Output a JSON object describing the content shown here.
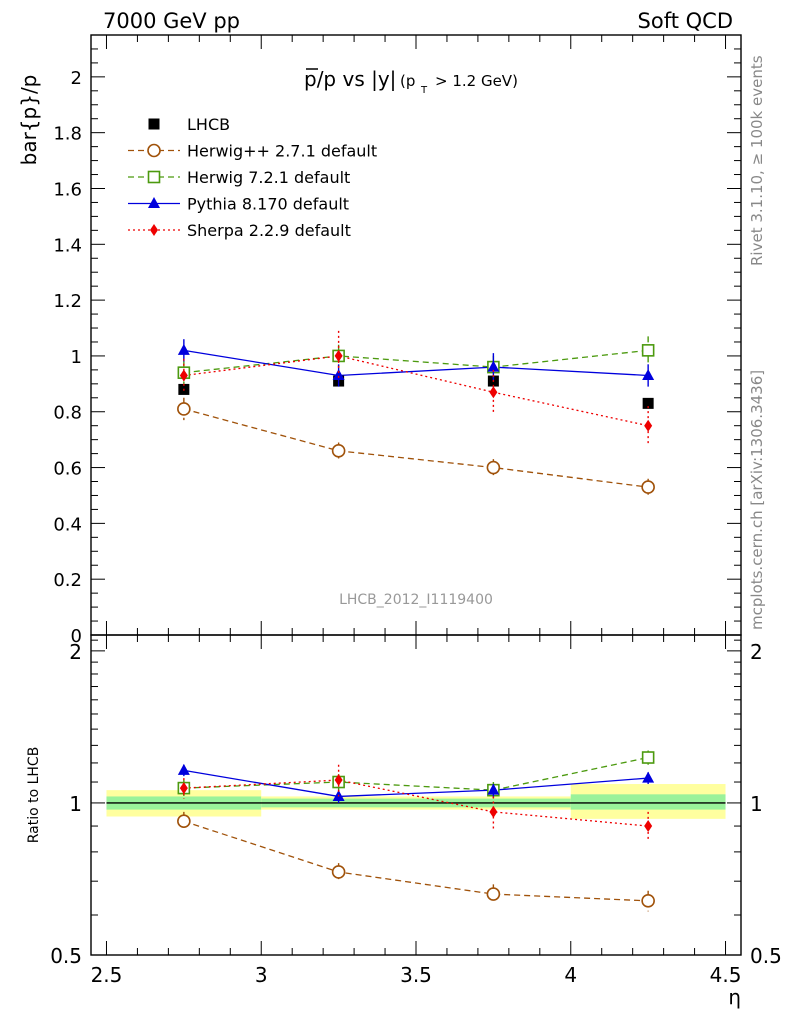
{
  "header": {
    "left": "7000 GeV pp",
    "right": "Soft QCD"
  },
  "side_labels": {
    "rivet": "Rivet 3.1.10, ≥ 100k events",
    "mcplots": "mcplots.cern.ch [arXiv:1306.3436]"
  },
  "colors": {
    "lhcb": "#000000",
    "herwigpp": "#a0520a",
    "herwig7": "#4c9a0f",
    "pythia": "#0000dd",
    "sherpa": "#ee0000",
    "band_inner": "#9af29a",
    "band_outer": "#ffff9f"
  },
  "chart_data": [
    {
      "type": "scatter",
      "panel": "main",
      "title": "p̅/p vs |y|",
      "title_sub": "(p_T > 1.2 GeV)",
      "title_main": "p/p vs |y|",
      "title_cond": "> 1.2 GeV)",
      "title_pt": "(p",
      "title_pt_sub": "T",
      "ylabel": "bar{p}/p",
      "xlabel": "",
      "watermark": "LHCB_2012_I1119400",
      "xlim": [
        2.45,
        4.55
      ],
      "ylim": [
        0,
        2.15
      ],
      "yticks": [
        0,
        0.2,
        0.4,
        0.6,
        0.8,
        1,
        1.2,
        1.4,
        1.6,
        1.8,
        2
      ],
      "ytick_labels": [
        "0",
        "0.2",
        "0.4",
        "0.6",
        "0.8",
        "1",
        "1.2",
        "1.4",
        "1.6",
        "1.8",
        "2"
      ],
      "x": [
        2.75,
        3.25,
        3.75,
        4.25
      ],
      "series": [
        {
          "name": "LHCB",
          "key": "lhcb",
          "values": [
            0.88,
            0.91,
            0.91,
            0.83
          ],
          "errors": [
            0.01,
            0.01,
            0.01,
            0.01
          ]
        },
        {
          "name": "Herwig++ 2.7.1 default",
          "key": "herwigpp",
          "values": [
            0.81,
            0.66,
            0.6,
            0.53
          ],
          "errors": [
            0.04,
            0.03,
            0.03,
            0.03
          ]
        },
        {
          "name": "Herwig 7.2.1 default",
          "key": "herwig7",
          "values": [
            0.94,
            1.0,
            0.96,
            1.02
          ],
          "errors": [
            0.04,
            0.04,
            0.04,
            0.05
          ]
        },
        {
          "name": "Pythia 8.170 default",
          "key": "pythia",
          "values": [
            1.02,
            0.93,
            0.96,
            0.93
          ],
          "errors": [
            0.04,
            0.04,
            0.05,
            0.04
          ]
        },
        {
          "name": "Sherpa 2.2.9 default",
          "key": "sherpa",
          "values": [
            0.93,
            1.0,
            0.87,
            0.75
          ],
          "errors": [
            0.06,
            0.09,
            0.08,
            0.07
          ]
        }
      ]
    },
    {
      "type": "scatter",
      "panel": "ratio",
      "ylabel": "Ratio to LHCB",
      "xlabel": "η",
      "xlim": [
        2.45,
        4.55
      ],
      "ylim": [
        0.5,
        2.15
      ],
      "yscale": "log",
      "yticks": [
        0.5,
        1,
        2
      ],
      "ytick_labels": [
        "0.5",
        "1",
        "2"
      ],
      "xticks": [
        2.5,
        3,
        3.5,
        4,
        4.5
      ],
      "xtick_labels": [
        "2.5",
        "3",
        "3.5",
        "4",
        "4.5"
      ],
      "x": [
        2.75,
        3.25,
        3.75,
        4.25
      ],
      "band_edges": [
        2.5,
        3.0,
        3.5,
        4.0,
        4.5
      ],
      "band_inner": [
        [
          0.97,
          1.03
        ],
        [
          0.98,
          1.02
        ],
        [
          0.98,
          1.02
        ],
        [
          0.97,
          1.04
        ]
      ],
      "band_outer": [
        [
          0.94,
          1.06
        ],
        [
          0.97,
          1.03
        ],
        [
          0.97,
          1.03
        ],
        [
          0.93,
          1.09
        ]
      ],
      "series": [
        {
          "name": "Herwig++ 2.7.1 default",
          "key": "herwigpp",
          "values": [
            0.92,
            0.73,
            0.66,
            0.64
          ],
          "errors": [
            0.04,
            0.03,
            0.03,
            0.03
          ]
        },
        {
          "name": "Herwig 7.2.1 default",
          "key": "herwig7",
          "values": [
            1.07,
            1.1,
            1.06,
            1.23
          ],
          "errors": [
            0.04,
            0.04,
            0.04,
            0.04
          ]
        },
        {
          "name": "Pythia 8.170 default",
          "key": "pythia",
          "values": [
            1.16,
            1.03,
            1.06,
            1.12
          ],
          "errors": [
            0.03,
            0.03,
            0.03,
            0.03
          ]
        },
        {
          "name": "Sherpa 2.2.9 default",
          "key": "sherpa",
          "values": [
            1.07,
            1.11,
            0.96,
            0.9
          ],
          "errors": [
            0.05,
            0.08,
            0.07,
            0.06
          ]
        }
      ]
    }
  ]
}
